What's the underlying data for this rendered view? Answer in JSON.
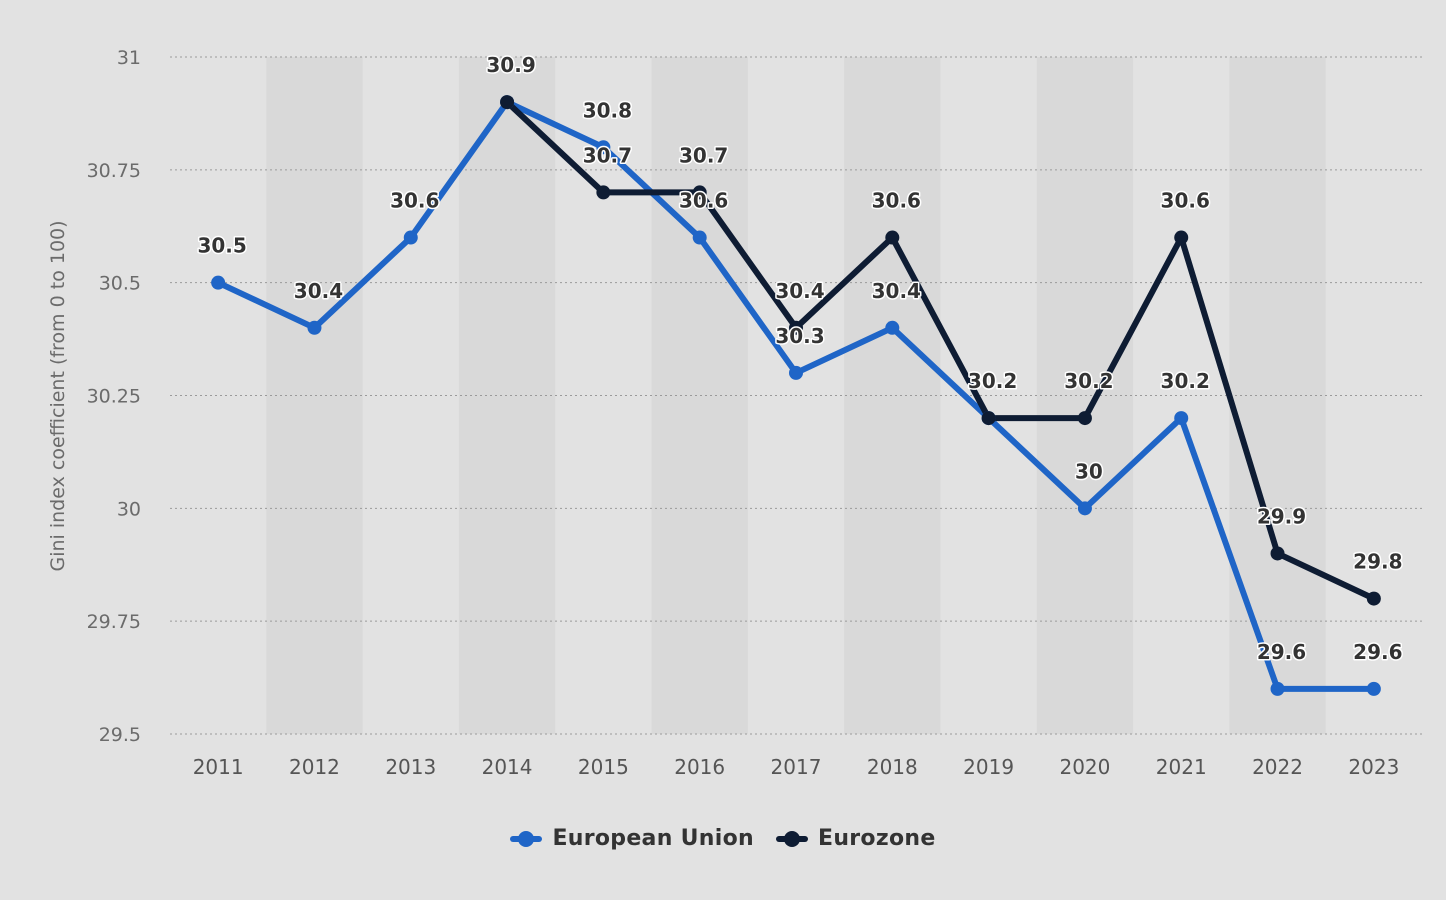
{
  "chart_data": {
    "type": "line",
    "ylabel": "Gini index coefficient (from 0 to 100)",
    "xlabel": "",
    "ylim": [
      29.5,
      31
    ],
    "yticks": [
      "29.5",
      "29.75",
      "30",
      "30.25",
      "30.5",
      "30.75",
      "31"
    ],
    "yticks_values": [
      29.5,
      29.75,
      30,
      30.25,
      30.5,
      30.75,
      31
    ],
    "categories": [
      "2011",
      "2012",
      "2013",
      "2014",
      "2015",
      "2016",
      "2017",
      "2018",
      "2019",
      "2020",
      "2021",
      "2022",
      "2023"
    ],
    "grid": true,
    "legend_position": "bottom-center",
    "series": [
      {
        "name": "European Union",
        "color": "#1f65c7",
        "values": [
          30.5,
          30.4,
          30.6,
          30.9,
          30.8,
          30.6,
          30.3,
          30.4,
          30.2,
          30.0,
          30.2,
          29.6,
          29.6
        ],
        "labels": [
          "30.5",
          "30.4",
          "30.6",
          "30.9",
          "30.8",
          "30.6",
          "30.3",
          "30.4",
          "30.2",
          "30",
          "30.2",
          "29.6",
          "29.6"
        ]
      },
      {
        "name": "Eurozone",
        "color": "#0e1c33",
        "values": [
          null,
          null,
          null,
          30.9,
          30.7,
          30.7,
          30.4,
          30.6,
          30.2,
          30.2,
          30.6,
          29.9,
          29.8
        ],
        "labels": [
          "",
          "",
          "",
          "",
          "30.7",
          "30.7",
          "30.4",
          "30.6",
          "30.2",
          "30.2",
          "30.6",
          "29.9",
          "29.8"
        ]
      }
    ]
  }
}
